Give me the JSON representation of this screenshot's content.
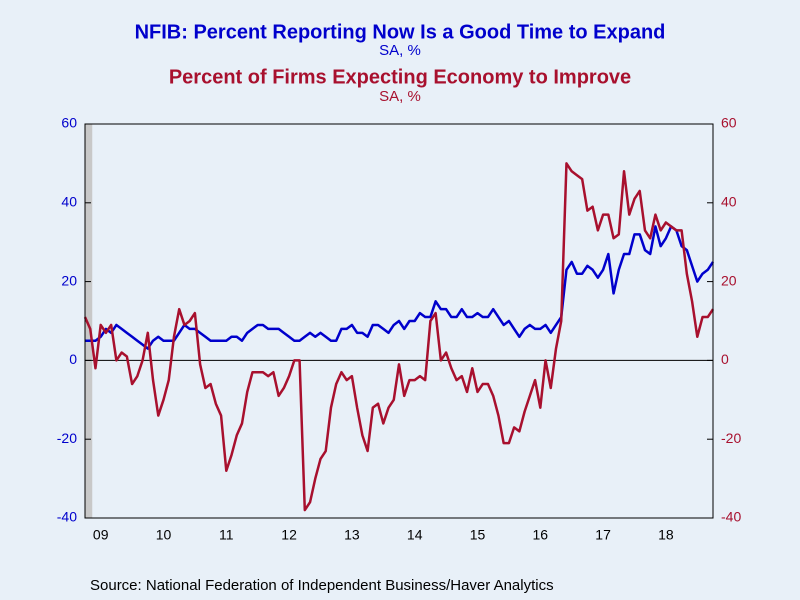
{
  "chart_data": {
    "type": "line",
    "series": [
      {
        "name": "NFIB: Percent Reporting Now Is a Good Time to Expand",
        "units": "SA, %",
        "color": "#0000cc",
        "axis": "y",
        "values": [
          5,
          5,
          5,
          6,
          8,
          7,
          9,
          8,
          7,
          6,
          5,
          4,
          3,
          5,
          6,
          5,
          5,
          5,
          7,
          9,
          8,
          8,
          7,
          6,
          5,
          5,
          5,
          5,
          6,
          6,
          5,
          7,
          8,
          9,
          9,
          8,
          8,
          8,
          7,
          6,
          5,
          5,
          6,
          7,
          6,
          7,
          6,
          5,
          5,
          8,
          8,
          9,
          7,
          7,
          6,
          9,
          9,
          8,
          7,
          9,
          10,
          8,
          10,
          10,
          12,
          11,
          11,
          15,
          13,
          13,
          11,
          11,
          13,
          11,
          11,
          12,
          11,
          11,
          13,
          11,
          9,
          10,
          8,
          6,
          8,
          9,
          8,
          8,
          9,
          7,
          9,
          11,
          23,
          25,
          22,
          22,
          24,
          23,
          21,
          23,
          27,
          17,
          23,
          27,
          27,
          32,
          32,
          28,
          27,
          34,
          29,
          31,
          34,
          33,
          29,
          28,
          24,
          20,
          22,
          23,
          25
        ]
      },
      {
        "name": "Percent of Firms Expecting Economy to Improve",
        "units": "SA, %",
        "color": "#a8102e",
        "axis": "y2",
        "values": [
          11,
          8,
          -2,
          9,
          7,
          9,
          0,
          2,
          1,
          -6,
          -4,
          0,
          7,
          -5,
          -14,
          -10,
          -5,
          6,
          13,
          9,
          10,
          12,
          -1,
          -7,
          -6,
          -11,
          -14,
          -28,
          -24,
          -19,
          -16,
          -8,
          -3,
          -3,
          -3,
          -4,
          -3,
          -9,
          -7,
          -4,
          0,
          0,
          -38,
          -36,
          -30,
          -25,
          -23,
          -12,
          -6,
          -3,
          -5,
          -4,
          -12,
          -19,
          -23,
          -12,
          -11,
          -16,
          -12,
          -10,
          -1,
          -9,
          -5,
          -5,
          -4,
          -5,
          10,
          12,
          0,
          2,
          -2,
          -5,
          -4,
          -8,
          -2,
          -8,
          -6,
          -6,
          -9,
          -14,
          -21,
          -21,
          -17,
          -18,
          -13,
          -9,
          -5,
          -12,
          0,
          -7,
          3,
          10,
          50,
          48,
          47,
          46,
          38,
          39,
          33,
          37,
          37,
          31,
          32,
          48,
          37,
          41,
          43,
          33,
          31,
          37,
          33,
          35,
          34,
          33,
          33,
          22,
          15,
          6,
          11,
          11,
          13
        ]
      }
    ],
    "categories": [
      null,
      null,
      null,
      "09",
      null,
      null,
      null,
      null,
      null,
      null,
      null,
      null,
      null,
      null,
      null,
      "10",
      null,
      null,
      null,
      null,
      null,
      null,
      null,
      null,
      null,
      null,
      null,
      "11",
      null,
      null,
      null,
      null,
      null,
      null,
      null,
      null,
      null,
      null,
      null,
      "12",
      null,
      null,
      null,
      null,
      null,
      null,
      null,
      null,
      null,
      null,
      null,
      "13",
      null,
      null,
      null,
      null,
      null,
      null,
      null,
      null,
      null,
      null,
      null,
      "14",
      null,
      null,
      null,
      null,
      null,
      null,
      null,
      null,
      null,
      null,
      null,
      "15",
      null,
      null,
      null,
      null,
      null,
      null,
      null,
      null,
      null,
      null,
      null,
      "16",
      null,
      null,
      null,
      null,
      null,
      null,
      null,
      null,
      null,
      null,
      null,
      "17",
      null,
      null,
      null,
      null,
      null,
      null,
      null,
      null,
      null,
      null,
      null,
      "18",
      null,
      null,
      null,
      null,
      null,
      null,
      null,
      null,
      null
    ],
    "ylim": [
      -40,
      60
    ],
    "yticks": [
      -40,
      -20,
      0,
      20,
      40,
      60
    ],
    "y2lim": [
      -40,
      60
    ],
    "y2ticks": [
      -40,
      -20,
      0,
      20,
      40,
      60
    ],
    "shade": [
      0,
      1
    ],
    "source": "Source:  National Federation of Independent Business/Haver Analytics"
  }
}
